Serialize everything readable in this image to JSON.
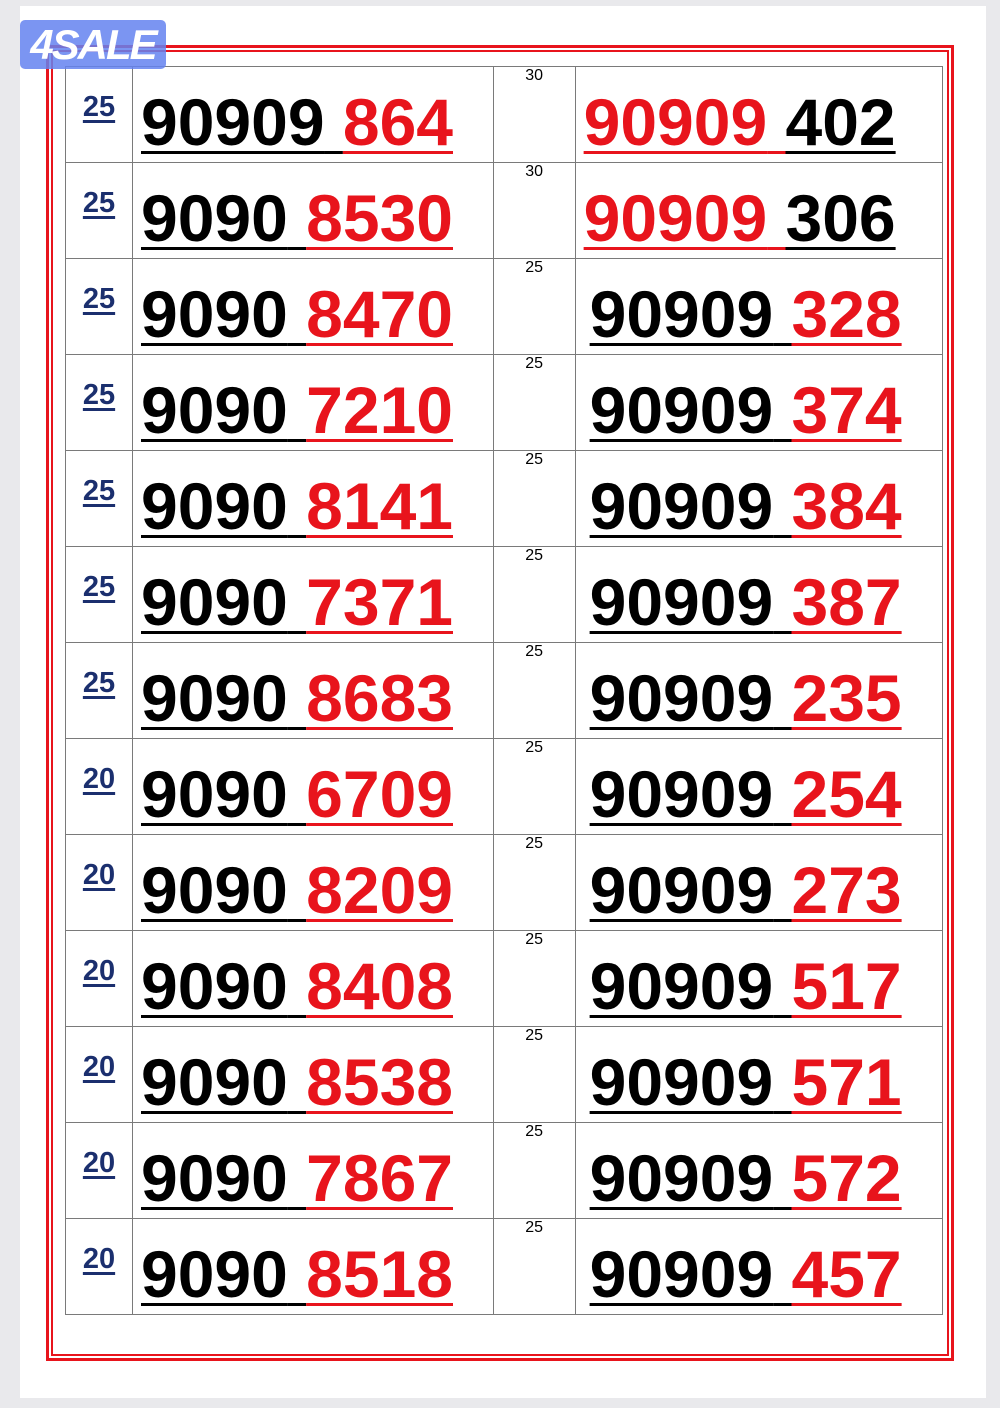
{
  "logo": {
    "text": "4SALE"
  },
  "colors": {
    "red": "#e8141c",
    "black": "#000000",
    "price": "#1b2f6e"
  },
  "rows": [
    {
      "left": {
        "price": "25",
        "prefix": "90909",
        "suffix": "864",
        "prefix_color": "black"
      },
      "right": {
        "price": "30",
        "prefix": "90909",
        "suffix": "402",
        "prefix_color": "red"
      }
    },
    {
      "left": {
        "price": "25",
        "prefix": "9090",
        "suffix": "8530",
        "prefix_color": "black"
      },
      "right": {
        "price": "30",
        "prefix": "90909",
        "suffix": "306",
        "prefix_color": "red"
      }
    },
    {
      "left": {
        "price": "25",
        "prefix": "9090",
        "suffix": "8470",
        "prefix_color": "black"
      },
      "right": {
        "price": "25",
        "prefix": "90909",
        "suffix": "328",
        "prefix_color": "black"
      }
    },
    {
      "left": {
        "price": "25",
        "prefix": "9090",
        "suffix": "7210",
        "prefix_color": "black"
      },
      "right": {
        "price": "25",
        "prefix": "90909",
        "suffix": "374",
        "prefix_color": "black"
      }
    },
    {
      "left": {
        "price": "25",
        "prefix": "9090",
        "suffix": "8141",
        "prefix_color": "black"
      },
      "right": {
        "price": "25",
        "prefix": "90909",
        "suffix": "384",
        "prefix_color": "black"
      }
    },
    {
      "left": {
        "price": "25",
        "prefix": "9090",
        "suffix": "7371",
        "prefix_color": "black"
      },
      "right": {
        "price": "25",
        "prefix": "90909",
        "suffix": "387",
        "prefix_color": "black"
      }
    },
    {
      "left": {
        "price": "25",
        "prefix": "9090",
        "suffix": "8683",
        "prefix_color": "black"
      },
      "right": {
        "price": "25",
        "prefix": "90909",
        "suffix": "235",
        "prefix_color": "black"
      }
    },
    {
      "left": {
        "price": "20",
        "prefix": "9090",
        "suffix": "6709",
        "prefix_color": "black"
      },
      "right": {
        "price": "25",
        "prefix": "90909",
        "suffix": "254",
        "prefix_color": "black"
      }
    },
    {
      "left": {
        "price": "20",
        "prefix": "9090",
        "suffix": "8209",
        "prefix_color": "black"
      },
      "right": {
        "price": "25",
        "prefix": "90909",
        "suffix": "273",
        "prefix_color": "black"
      }
    },
    {
      "left": {
        "price": "20",
        "prefix": "9090",
        "suffix": "8408",
        "prefix_color": "black"
      },
      "right": {
        "price": "25",
        "prefix": "90909",
        "suffix": "517",
        "prefix_color": "black"
      }
    },
    {
      "left": {
        "price": "20",
        "prefix": "9090",
        "suffix": "8538",
        "prefix_color": "black"
      },
      "right": {
        "price": "25",
        "prefix": "90909",
        "suffix": "571",
        "prefix_color": "black"
      }
    },
    {
      "left": {
        "price": "20",
        "prefix": "9090",
        "suffix": "7867",
        "prefix_color": "black"
      },
      "right": {
        "price": "25",
        "prefix": "90909",
        "suffix": "572",
        "prefix_color": "black"
      }
    },
    {
      "left": {
        "price": "20",
        "prefix": "9090",
        "suffix": "8518",
        "prefix_color": "black"
      },
      "right": {
        "price": "25",
        "prefix": "90909",
        "suffix": "457",
        "prefix_color": "black"
      }
    }
  ]
}
